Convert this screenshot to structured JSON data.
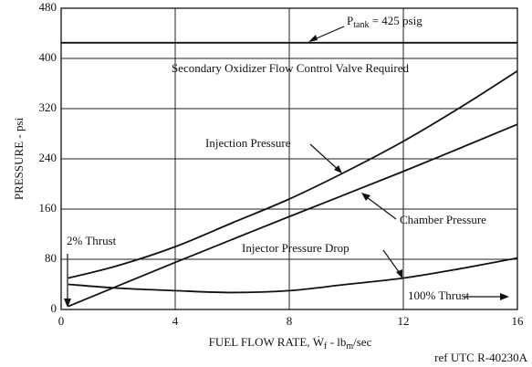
{
  "chart_data": {
    "type": "line",
    "title_parts": [
      {
        "text": "P"
      },
      {
        "text": "tank",
        "sub": true
      },
      {
        "text": " = 425 psig"
      }
    ],
    "annotations": [
      "Secondary Oxidizer Flow Control Valve Required",
      "2% Thrust",
      "100% Thrust"
    ],
    "x_label_parts": [
      {
        "text": "FUEL FLOW RATE, Ẇ"
      },
      {
        "text": "f",
        "sub": true
      },
      {
        "text": " - lb"
      },
      {
        "text": "m",
        "sub": true
      },
      {
        "text": "/sec"
      }
    ],
    "y_label": "PRESSURE - psi",
    "footer": "ref UTC R-40230A",
    "xlim": [
      0,
      16
    ],
    "xticks": [
      0,
      4,
      8,
      12,
      16
    ],
    "ylim": [
      0,
      480
    ],
    "yticks": [
      0,
      80,
      160,
      240,
      320,
      400,
      480
    ],
    "grid": true,
    "series": [
      {
        "color": "#111111",
        "x": [
          0,
          16
        ],
        "values": [
          425,
          425
        ]
      },
      {
        "name": "Injection Pressure",
        "color": "#111111",
        "x": [
          0.25,
          2,
          4,
          6,
          8,
          10,
          12,
          14,
          16
        ],
        "values": [
          50,
          70,
          100,
          138,
          176,
          220,
          268,
          322,
          380
        ]
      },
      {
        "name": "Chamber Pressure",
        "color": "#111111",
        "x": [
          0.25,
          4,
          8,
          12,
          16
        ],
        "values": [
          5,
          75,
          148,
          220,
          295
        ]
      },
      {
        "name": "Injector Pressure Drop",
        "color": "#111111",
        "x": [
          0.25,
          2,
          4,
          6,
          8,
          10,
          12,
          14,
          16
        ],
        "values": [
          40,
          34,
          30,
          27,
          30,
          40,
          50,
          65,
          82
        ]
      }
    ]
  }
}
